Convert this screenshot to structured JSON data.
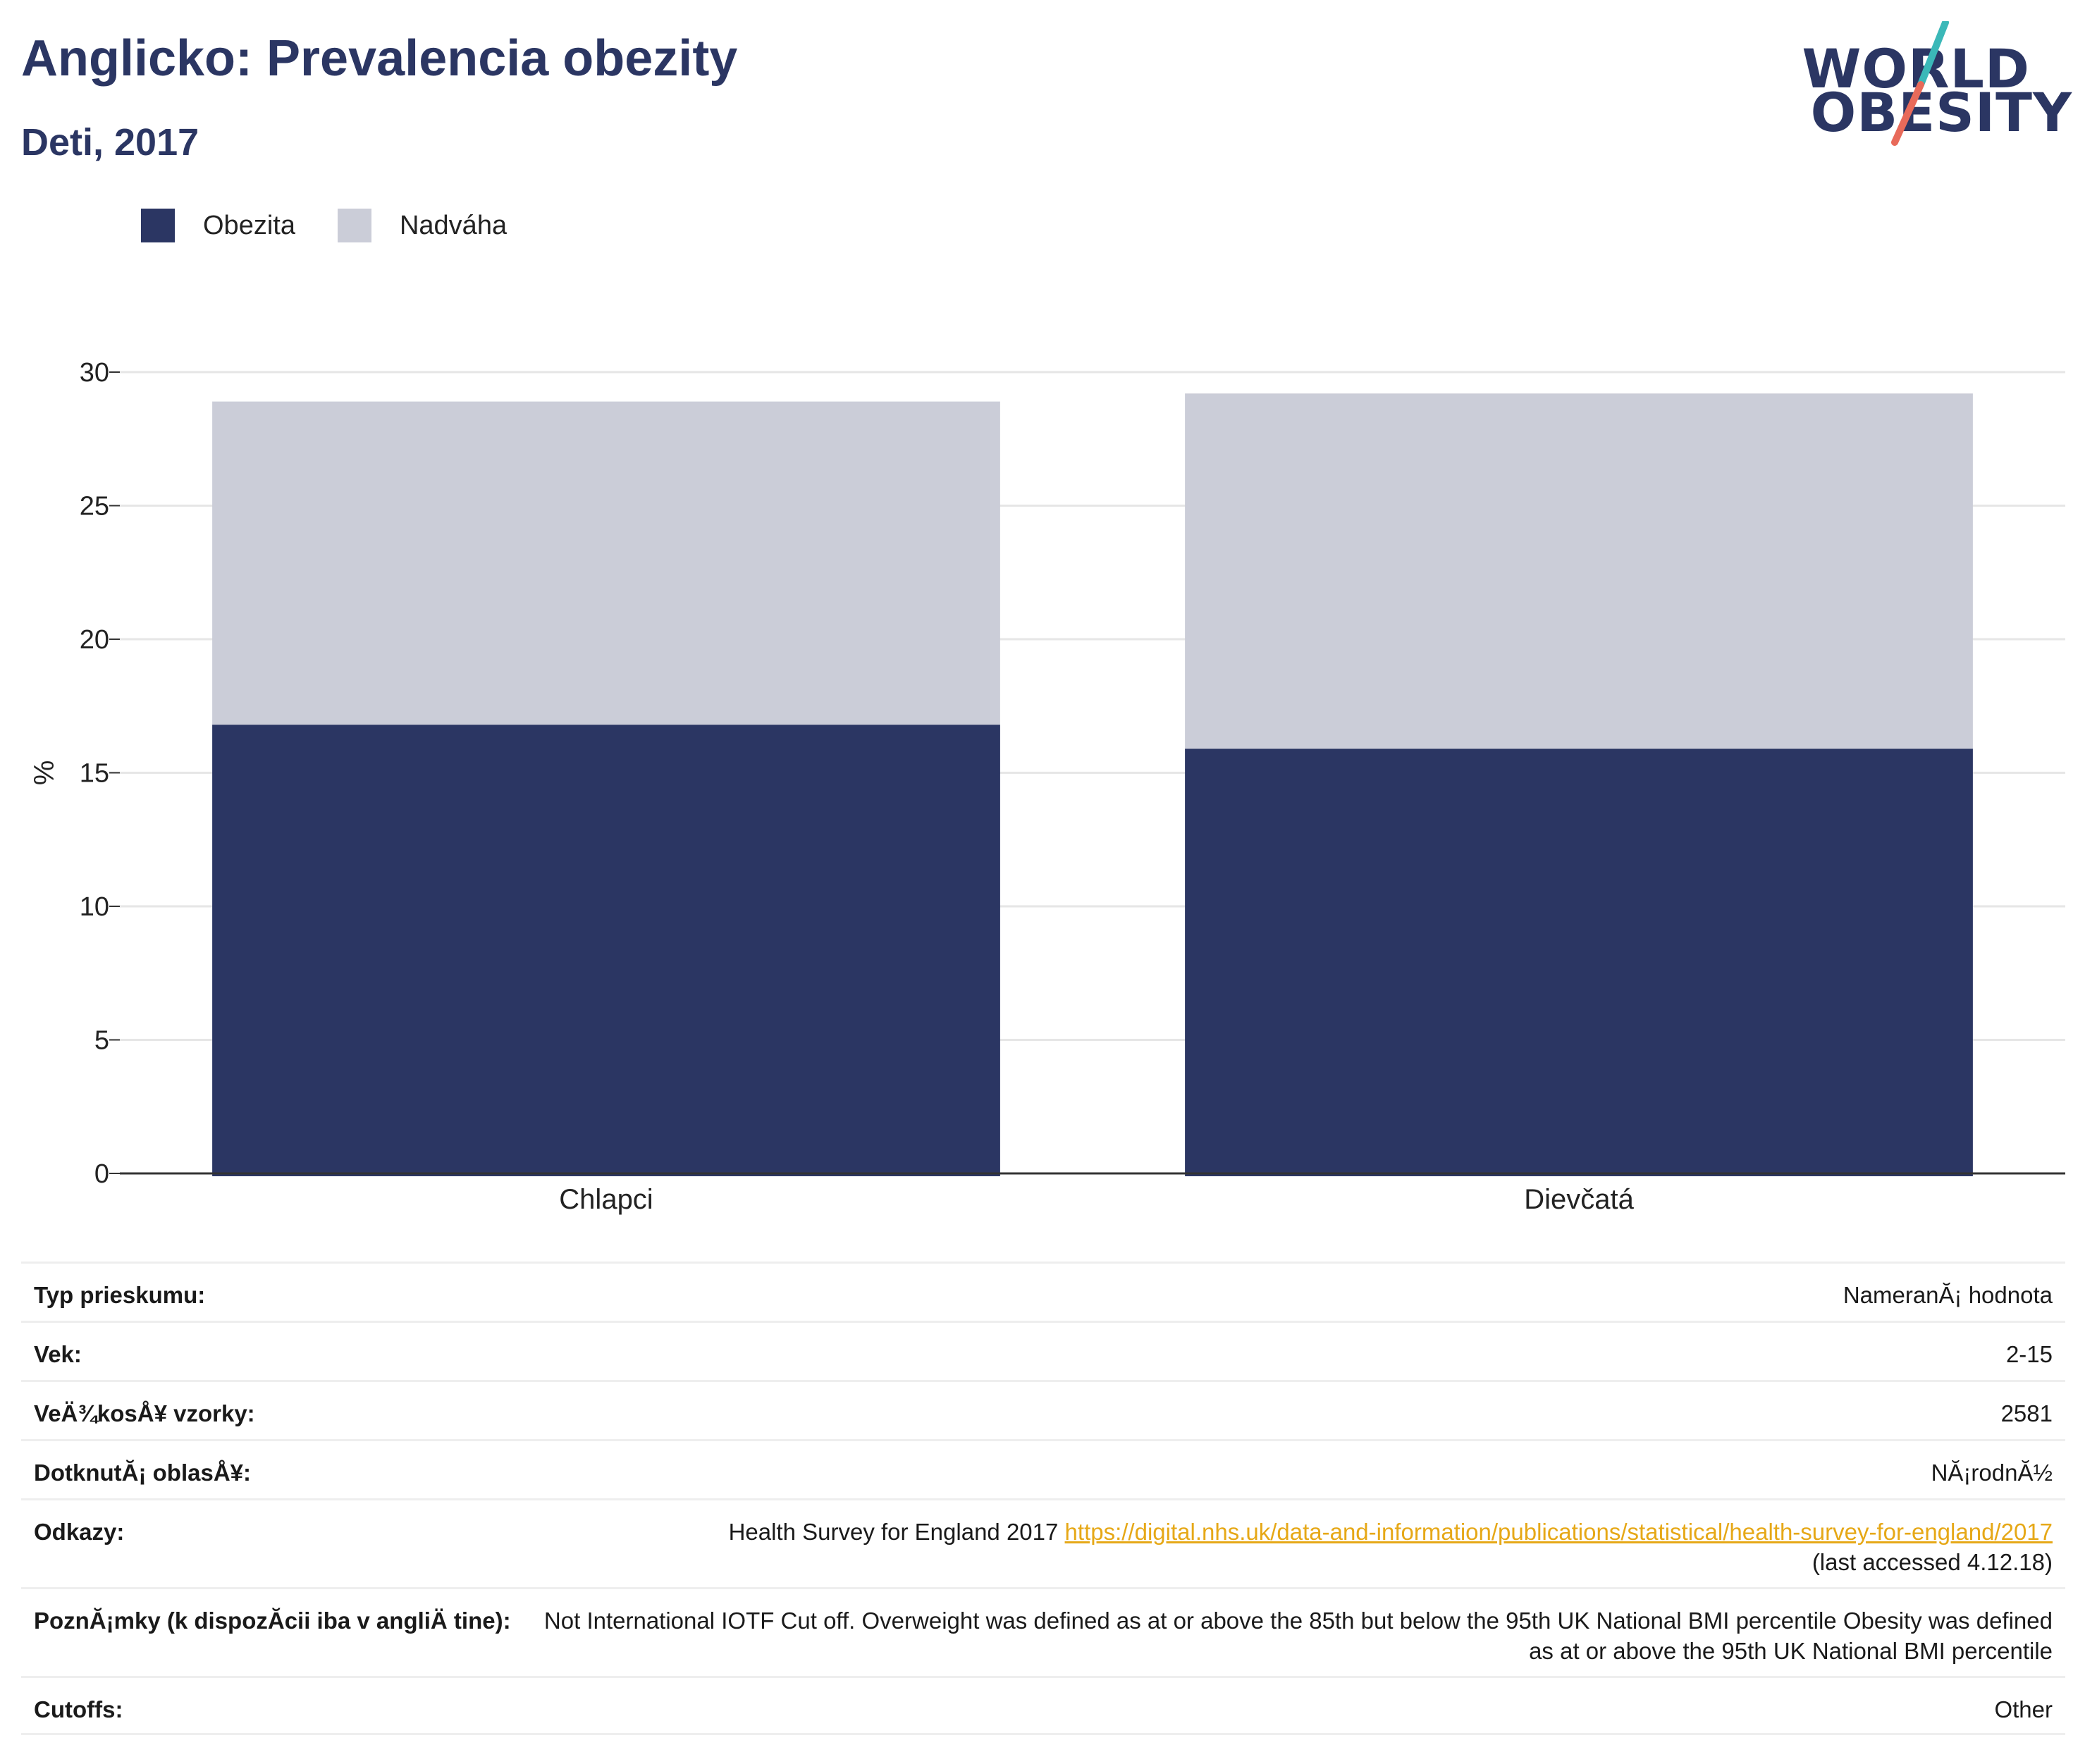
{
  "header": {
    "title": "Anglicko: Prevalencia obezity",
    "subtitle": "Deti, 2017"
  },
  "logo": {
    "line1": "WORLD",
    "line2": "OBESITY",
    "accent_teal": "#3bb8b8",
    "accent_coral": "#e86a5a"
  },
  "legend": {
    "items": [
      {
        "label": "Obezita",
        "color": "#2b3663"
      },
      {
        "label": "Nadváha",
        "color": "#cbcdd8"
      }
    ]
  },
  "chart_data": {
    "type": "bar",
    "stacked": true,
    "categories": [
      "Chlapci",
      "Dievčatá"
    ],
    "series": [
      {
        "name": "Obezita",
        "values": [
          16.8,
          15.9
        ],
        "color": "#2b3663"
      },
      {
        "name": "Nadváha",
        "values": [
          12.1,
          13.3
        ],
        "color": "#cbcdd8"
      }
    ],
    "ylabel": "%",
    "ylim": [
      0,
      30
    ],
    "yticks": [
      0,
      5,
      10,
      15,
      20,
      25,
      30
    ],
    "grid": true,
    "legend_position": "top-left"
  },
  "meta": {
    "rows": [
      {
        "label": "Typ prieskumu:",
        "value": "NameranĂ¡ hodnota"
      },
      {
        "label": "Vek:",
        "value": "2-15"
      },
      {
        "label": "VeÄ¾kosÅ¥ vzorky:",
        "value": "2581"
      },
      {
        "label": "DotknutĂ¡ oblasÅ¥:",
        "value": "NĂ¡rodnĂ½"
      },
      {
        "label": "Odkazy:",
        "value": "Health Survey for England 2017",
        "link": "https://digital.nhs.uk/data-and-information/publications/statistical/health-survey-for-england/2017",
        "note": "(last accessed 4.12.18)"
      },
      {
        "label": "PoznĂ¡mky (k dispozĂcii iba v angliÄ tine):",
        "value": "Not International IOTF Cut off. Overweight was defined as at or above the 85th but below the 95th UK National BMI percentile Obesity was defined as at or above the 95th UK National BMI percentile"
      },
      {
        "label": "Cutoffs:",
        "value": "Other"
      }
    ]
  }
}
